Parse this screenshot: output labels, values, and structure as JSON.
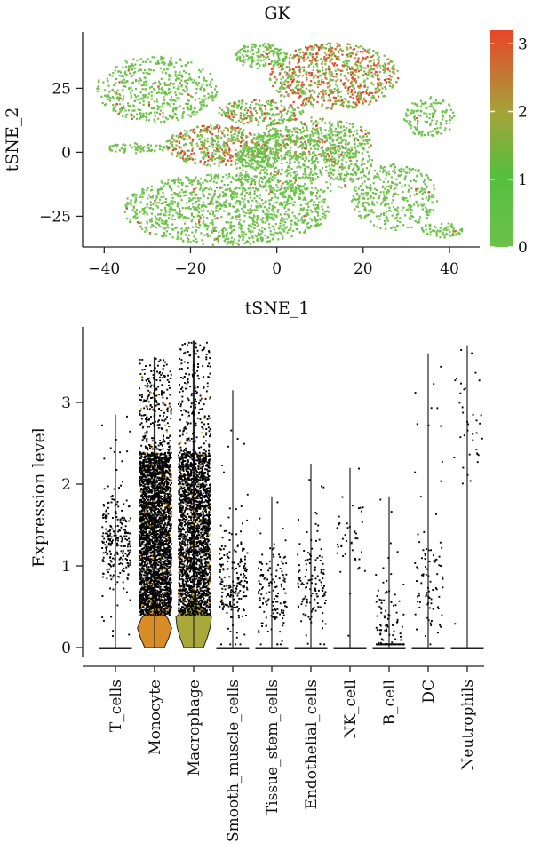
{
  "colors": {
    "low": "#6cc24a",
    "mid": "#9aa83a",
    "high": "#e8452a",
    "dot": "#000000",
    "violin_monocyte": "#d98c26",
    "violin_macrophage": "#a9a83a",
    "axis": "#222222"
  },
  "chart_data": [
    {
      "type": "scatter",
      "title": "GK",
      "xlabel": "tSNE_1",
      "ylabel": "tSNE_2",
      "xlim": [
        -45,
        47
      ],
      "ylim": [
        -37,
        47
      ],
      "xticks": [
        -40,
        -20,
        0,
        20,
        40
      ],
      "yticks": [
        25,
        0,
        -25
      ],
      "colorbar": {
        "min": 0,
        "max": 3.2,
        "ticks": [
          0,
          1,
          2,
          3
        ],
        "colors": [
          "#6cc24a",
          "#56be3d",
          "#a3a33a",
          "#e8452a"
        ]
      },
      "clusters": [
        {
          "cx": -28,
          "cy": 25,
          "rx": 14,
          "ry": 13,
          "n": 520,
          "expr": 0.05
        },
        {
          "cx": -14,
          "cy": 3,
          "rx": 12,
          "ry": 8,
          "n": 420,
          "expr": 0.55
        },
        {
          "cx": -4,
          "cy": 16,
          "rx": 10,
          "ry": 5,
          "n": 220,
          "expr": 0.45
        },
        {
          "cx": 13,
          "cy": 30,
          "rx": 15,
          "ry": 13,
          "n": 820,
          "expr": 0.7
        },
        {
          "cx": 8,
          "cy": 5,
          "rx": 14,
          "ry": 9,
          "n": 380,
          "expr": 0.35
        },
        {
          "cx": -12,
          "cy": -22,
          "rx": 24,
          "ry": 14,
          "n": 1200,
          "expr": 0.03
        },
        {
          "cx": 6,
          "cy": -3,
          "rx": 16,
          "ry": 13,
          "n": 600,
          "expr": 0.04
        },
        {
          "cx": 27,
          "cy": -17,
          "rx": 10,
          "ry": 13,
          "n": 360,
          "expr": 0.02
        },
        {
          "cx": -4,
          "cy": 38,
          "rx": 6,
          "ry": 5,
          "n": 150,
          "expr": 0.05
        },
        {
          "cx": 38,
          "cy": -30,
          "rx": 5,
          "ry": 3,
          "n": 70,
          "expr": 0.02
        },
        {
          "cx": 35,
          "cy": 14,
          "rx": 6,
          "ry": 8,
          "n": 140,
          "expr": 0.02
        },
        {
          "cx": -5,
          "cy": -2,
          "rx": 5,
          "ry": 4,
          "n": 90,
          "expr": 0.05
        },
        {
          "cx": -33,
          "cy": 2,
          "rx": 7,
          "ry": 2,
          "n": 60,
          "expr": 0.02
        }
      ]
    },
    {
      "type": "violin",
      "xlabel": "",
      "ylabel": "Expression level",
      "ylim": [
        -0.1,
        3.85
      ],
      "yticks": [
        0,
        1,
        2,
        3
      ],
      "categories": [
        "T_cells",
        "Monocyte",
        "Macrophage",
        "Smooth_muscle_cells",
        "Tissue_stem_cells",
        "Endothelial_cells",
        "NK_cell",
        "B_cell",
        "DC",
        "Neutrophils"
      ],
      "max_values": [
        2.85,
        3.55,
        3.75,
        3.15,
        1.85,
        2.25,
        2.2,
        1.85,
        3.6,
        3.7
      ],
      "center_values": [
        1.35,
        1.2,
        1.1,
        0.8,
        0.7,
        0.75,
        1.4,
        0.3,
        0.8,
        2.8
      ],
      "point_counts": [
        260,
        3200,
        2400,
        200,
        140,
        130,
        45,
        110,
        90,
        38
      ],
      "violin_peak": [
        0.0,
        0.32,
        0.38,
        0.0,
        0.0,
        0.0,
        0.0,
        0.0,
        0.0,
        0.0
      ]
    }
  ]
}
